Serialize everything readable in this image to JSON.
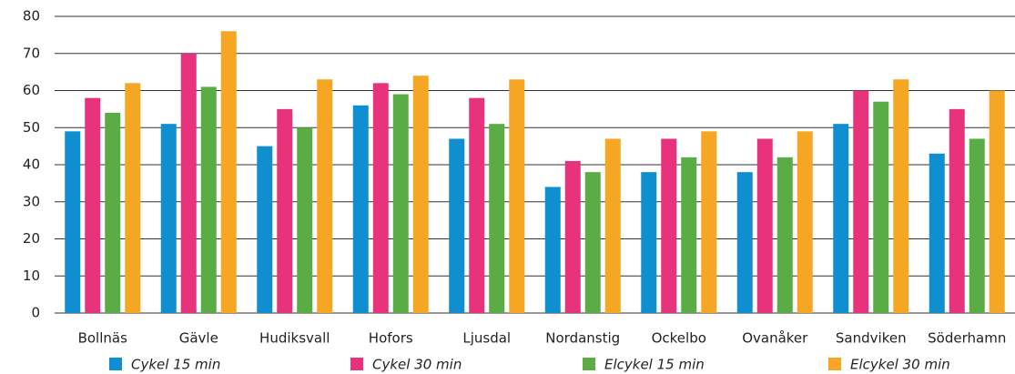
{
  "chart_data": {
    "type": "bar",
    "categories": [
      "Bollnäs",
      "Gävle",
      "Hudiksvall",
      "Hofors",
      "Ljusdal",
      "Nordanstig",
      "Ockelbo",
      "Ovanåker",
      "Sandviken",
      "Söderhamn"
    ],
    "series": [
      {
        "name": "Cykel 15 min",
        "color": "#0f8fcf",
        "values": [
          49,
          51,
          45,
          56,
          47,
          34,
          38,
          38,
          51,
          43
        ]
      },
      {
        "name": "Cykel 30 min",
        "color": "#e8327c",
        "values": [
          58,
          70,
          55,
          62,
          58,
          41,
          47,
          47,
          60,
          55
        ]
      },
      {
        "name": "Elcykel 15 min",
        "color": "#5aac44",
        "values": [
          54,
          61,
          50,
          59,
          51,
          38,
          42,
          42,
          57,
          47
        ]
      },
      {
        "name": "Elcykel 30 min",
        "color": "#f5a623",
        "values": [
          62,
          76,
          63,
          64,
          63,
          47,
          49,
          49,
          63,
          60
        ]
      }
    ],
    "ylim": [
      0,
      80
    ],
    "yticks": [
      0,
      10,
      20,
      30,
      40,
      50,
      60,
      70,
      80
    ],
    "grid": true,
    "legend": "bottom"
  }
}
